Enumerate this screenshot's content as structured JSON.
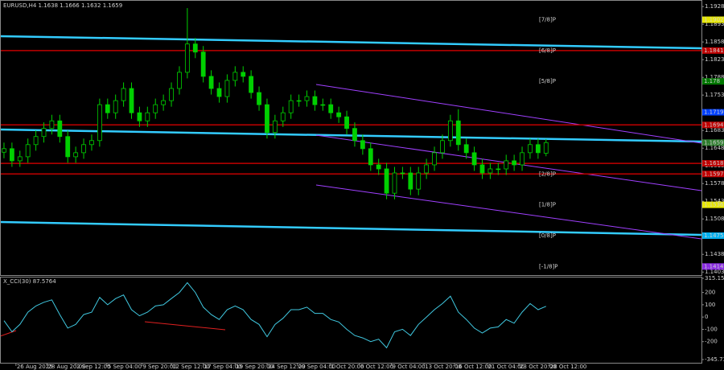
{
  "chart_data": [
    {
      "type": "candlestick",
      "title": "EURUSD,H4  1.1638 1.1666 1.1632 1.1659",
      "open": [
        1.164,
        1.1647,
        1.1623,
        1.1631,
        1.1655,
        1.1671,
        1.1687,
        1.1702,
        1.1671,
        1.1631,
        1.1639,
        1.1655,
        1.1663,
        1.1734,
        1.1718,
        1.1742,
        1.1766,
        1.1718,
        1.1702,
        1.1718,
        1.1734,
        1.1742,
        1.1766,
        1.1798,
        1.1854,
        1.1838,
        1.179,
        1.1766,
        1.175,
        1.1782,
        1.1798,
        1.179,
        1.1758,
        1.1734,
        1.1679,
        1.1702,
        1.1718,
        1.1742,
        1.1742,
        1.175,
        1.1734,
        1.1734,
        1.1718,
        1.171,
        1.1687,
        1.1663,
        1.1647,
        1.1615,
        1.1607,
        1.1559,
        1.1599,
        1.1599,
        1.1567,
        1.1599,
        1.1615,
        1.1639,
        1.1663,
        1.1702,
        1.1655,
        1.1639,
        1.1615,
        1.1599,
        1.1607,
        1.1607,
        1.1623,
        1.1615,
        1.1639,
        1.1655,
        1.1638
      ],
      "high": [
        1.1659,
        1.1659,
        1.1643,
        1.1667,
        1.1683,
        1.1699,
        1.1714,
        1.1714,
        1.1683,
        1.1651,
        1.1667,
        1.1675,
        1.1746,
        1.1746,
        1.1754,
        1.1778,
        1.1778,
        1.173,
        1.173,
        1.1746,
        1.1754,
        1.1778,
        1.181,
        1.1925,
        1.1866,
        1.185,
        1.1802,
        1.1778,
        1.1794,
        1.181,
        1.181,
        1.1802,
        1.177,
        1.1746,
        1.1714,
        1.173,
        1.1754,
        1.1754,
        1.1762,
        1.1762,
        1.1746,
        1.1746,
        1.173,
        1.1722,
        1.1699,
        1.1675,
        1.1659,
        1.1627,
        1.1619,
        1.1611,
        1.1611,
        1.1611,
        1.1611,
        1.1627,
        1.1651,
        1.1675,
        1.1714,
        1.1725,
        1.1667,
        1.1651,
        1.1627,
        1.1619,
        1.1619,
        1.1635,
        1.1635,
        1.1651,
        1.1667,
        1.1667,
        1.1666
      ],
      "low": [
        1.1628,
        1.1611,
        1.1611,
        1.1619,
        1.1643,
        1.1659,
        1.1675,
        1.1659,
        1.1619,
        1.1619,
        1.1627,
        1.1643,
        1.1651,
        1.1706,
        1.1706,
        1.173,
        1.1706,
        1.169,
        1.169,
        1.1706,
        1.1722,
        1.173,
        1.1754,
        1.1786,
        1.1826,
        1.1778,
        1.1754,
        1.1738,
        1.1738,
        1.177,
        1.1778,
        1.1746,
        1.1722,
        1.1667,
        1.1667,
        1.169,
        1.1706,
        1.173,
        1.173,
        1.1722,
        1.1722,
        1.1706,
        1.1698,
        1.1675,
        1.1651,
        1.1635,
        1.1603,
        1.1595,
        1.1547,
        1.1547,
        1.1587,
        1.1555,
        1.1555,
        1.1587,
        1.1603,
        1.1627,
        1.1651,
        1.1643,
        1.1627,
        1.1603,
        1.1587,
        1.1587,
        1.1595,
        1.1595,
        1.1603,
        1.1603,
        1.1627,
        1.1627,
        1.1632
      ],
      "close": [
        1.1647,
        1.1623,
        1.1631,
        1.1655,
        1.1671,
        1.1687,
        1.1702,
        1.1671,
        1.1631,
        1.1639,
        1.1655,
        1.1663,
        1.1734,
        1.1718,
        1.1742,
        1.1766,
        1.1718,
        1.1702,
        1.1718,
        1.1734,
        1.1742,
        1.1766,
        1.1798,
        1.1854,
        1.1838,
        1.179,
        1.1766,
        1.175,
        1.1782,
        1.1798,
        1.179,
        1.1758,
        1.1734,
        1.1679,
        1.1702,
        1.1718,
        1.1742,
        1.1742,
        1.175,
        1.1734,
        1.1734,
        1.1718,
        1.171,
        1.1687,
        1.1663,
        1.1647,
        1.1615,
        1.1607,
        1.1559,
        1.1599,
        1.1599,
        1.1567,
        1.1599,
        1.1615,
        1.1639,
        1.1663,
        1.1702,
        1.1655,
        1.1639,
        1.1615,
        1.1599,
        1.1607,
        1.1607,
        1.1623,
        1.1615,
        1.1639,
        1.1655,
        1.1639,
        1.1659
      ],
      "color": "#00d000",
      "ylim": [
        1.1397,
        1.1941
      ],
      "yticks": [
        1.1928,
        1.1893,
        1.1858,
        1.1823,
        1.1788,
        1.1753,
        1.1718,
        1.1683,
        1.1648,
        1.1613,
        1.1578,
        1.1543,
        1.1508,
        1.1473,
        1.1438,
        1.1403
      ],
      "xlim": [
        0,
        88
      ],
      "xticks": [
        {
          "value": 2.0,
          "label": "26 Aug 2025"
        },
        {
          "value": 5.9,
          "label": "28 Aug 20:00"
        },
        {
          "value": 9.5,
          "label": "2 Sep 12:00"
        },
        {
          "value": 13.4,
          "label": "5 Sep 04:00"
        },
        {
          "value": 17.8,
          "label": "9 Sep 20:00"
        },
        {
          "value": 21.5,
          "label": "12 Sep 12:00"
        },
        {
          "value": 25.5,
          "label": "17 Sep 04:00"
        },
        {
          "value": 29.5,
          "label": "19 Sep 20:00"
        },
        {
          "value": 33.5,
          "label": "24 Sep 12:00"
        },
        {
          "value": 37.3,
          "label": "29 Sep 04:00"
        },
        {
          "value": 41.4,
          "label": "1 Oct 20:00"
        },
        {
          "value": 45.1,
          "label": "6 Oct 12:00"
        },
        {
          "value": 49.1,
          "label": "9 Oct 04:00"
        },
        {
          "value": 53.2,
          "label": "13 Oct 20:00"
        },
        {
          "value": 57.0,
          "label": "16 Oct 12:00"
        },
        {
          "value": 61.1,
          "label": "21 Oct 04:00"
        },
        {
          "value": 65.1,
          "label": "23 Oct 20:00"
        },
        {
          "value": 68.9,
          "label": "28 Oct 12:00"
        }
      ],
      "levels": [
        {
          "value": 1.1902,
          "color": "#e8e800",
          "text_color": "#000000",
          "label": "[7/8]P",
          "line": false
        },
        {
          "value": 1.1841,
          "color": "#c00000",
          "text_color": "#ffffff",
          "label": "[6/8]P",
          "line": true
        },
        {
          "value": 1.178,
          "color": "#007700",
          "text_color": "#ffffff",
          "label": "[5/8]P",
          "line": false
        },
        {
          "value": 1.1719,
          "color": "#0040ff",
          "text_color": "#ffffff",
          "line": false
        },
        {
          "value": 1.1694,
          "color": "#c00000",
          "text_color": "#ffffff",
          "line": true
        },
        {
          "value": 1.1659,
          "color": "#2e7d2e",
          "text_color": "#ffffff",
          "line": false
        },
        {
          "value": 1.1618,
          "color": "#c00000",
          "text_color": "#ffffff",
          "line": true
        },
        {
          "value": 1.1597,
          "color": "#c00000",
          "text_color": "#ffffff",
          "label": "[2/8]P",
          "line": true
        },
        {
          "value": 1.1536,
          "color": "#e8e800",
          "text_color": "#000000",
          "label": "[1/8]P",
          "line": false
        },
        {
          "value": 1.1475,
          "color": "#00b0f0",
          "text_color": "#000000",
          "label": "[0/8]P",
          "line": false
        },
        {
          "value": 1.1414,
          "color": "#8a2be2",
          "text_color": "#ffffff",
          "label": "[-1/8]P",
          "line": false
        }
      ]
    },
    {
      "type": "line",
      "title": "X_CCI(30) 87.5764",
      "color": "#40c8e0",
      "values": [
        -30,
        -120,
        -60,
        40,
        90,
        120,
        140,
        20,
        -90,
        -60,
        20,
        40,
        160,
        100,
        150,
        180,
        60,
        10,
        40,
        90,
        100,
        150,
        200,
        280,
        200,
        80,
        20,
        -20,
        60,
        90,
        60,
        -20,
        -60,
        -160,
        -60,
        -10,
        60,
        60,
        80,
        30,
        30,
        -20,
        -40,
        -100,
        -150,
        -170,
        -200,
        -180,
        -250,
        -120,
        -100,
        -150,
        -60,
        0,
        60,
        110,
        170,
        40,
        -20,
        -90,
        -130,
        -90,
        -80,
        -20,
        -50,
        40,
        110,
        60,
        87.5764
      ],
      "ylim": [
        -345.7354,
        315.1542
      ],
      "yticks": [
        315.1542,
        200,
        100,
        0,
        -100,
        -200,
        -345.7354
      ]
    }
  ]
}
